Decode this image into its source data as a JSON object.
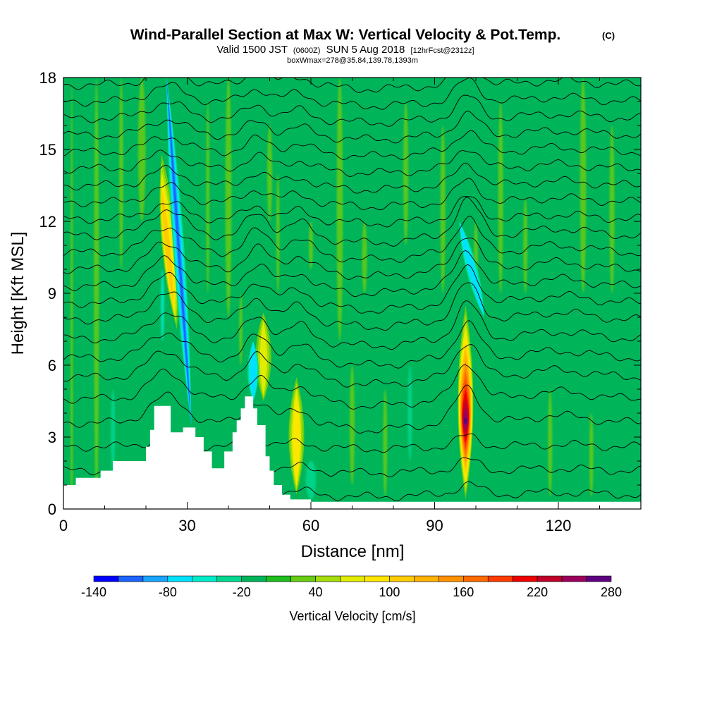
{
  "header": {
    "title_main": "Wind-Parallel Section at Max W: Vertical Velocity & Pot.Temp.",
    "title_mark": "(C)",
    "valid_prefix": "Valid 1500 JST",
    "valid_zulu": "(0600Z)",
    "valid_date": "SUN 5 Aug 2018",
    "valid_fcst": "[12hrFcst@2312z]",
    "box_info": "boxWmax=278@35.84,139.78,1393m"
  },
  "chart_data": {
    "type": "heatmap",
    "title": "Wind-Parallel Section at Max W: Vertical Velocity & Pot.Temp.",
    "xlabel": "Distance [nm]",
    "ylabel": "Height [Kft MSL]",
    "xlim": [
      0,
      140
    ],
    "ylim": [
      0,
      18
    ],
    "x_ticks": [
      0,
      30,
      60,
      90,
      120
    ],
    "y_ticks": [
      0,
      3,
      6,
      9,
      12,
      15,
      18
    ],
    "grid": false,
    "max_w_cm_s": 278,
    "max_w_location": "35.84,139.78",
    "max_w_height_m": 1393,
    "colorbar": {
      "label": "Vertical Velocity [cm/s]",
      "tick_labels": [
        "-140",
        "-80",
        "-20",
        "40",
        "100",
        "160",
        "220",
        "280"
      ],
      "tick_values": [
        -140,
        -80,
        -20,
        40,
        100,
        160,
        220,
        280
      ],
      "levels": [
        -140,
        -120,
        -100,
        -80,
        -60,
        -40,
        -20,
        0,
        20,
        40,
        60,
        80,
        100,
        120,
        140,
        160,
        180,
        200,
        220,
        240,
        260,
        280
      ],
      "colors": [
        "#0000ff",
        "#1e63ff",
        "#18a4ff",
        "#00e1ff",
        "#00ecc8",
        "#00d890",
        "#00b45a",
        "#1ebe1e",
        "#68cc12",
        "#a5dc0a",
        "#e2ec00",
        "#ffe600",
        "#ffcc00",
        "#ffb300",
        "#ff9100",
        "#ff6a00",
        "#ff3c00",
        "#ee0000",
        "#c00028",
        "#9b005c",
        "#5e0082"
      ]
    },
    "terrain_nm_kft": [
      [
        0,
        1.0
      ],
      [
        3,
        1.0
      ],
      [
        3,
        1.3
      ],
      [
        9,
        1.3
      ],
      [
        9,
        1.6
      ],
      [
        12,
        1.6
      ],
      [
        12,
        2.0
      ],
      [
        20,
        2.0
      ],
      [
        20,
        2.6
      ],
      [
        21,
        2.6
      ],
      [
        21,
        3.3
      ],
      [
        22,
        3.3
      ],
      [
        22,
        4.3
      ],
      [
        26,
        4.3
      ],
      [
        26,
        3.2
      ],
      [
        29,
        3.2
      ],
      [
        29,
        3.4
      ],
      [
        32,
        3.4
      ],
      [
        32,
        3.0
      ],
      [
        34,
        3.0
      ],
      [
        34,
        2.4
      ],
      [
        36,
        2.4
      ],
      [
        36,
        1.7
      ],
      [
        39,
        1.7
      ],
      [
        39,
        2.4
      ],
      [
        41,
        2.4
      ],
      [
        41,
        3.2
      ],
      [
        42,
        3.2
      ],
      [
        42,
        3.7
      ],
      [
        43,
        3.7
      ],
      [
        43,
        4.2
      ],
      [
        44,
        4.2
      ],
      [
        44,
        4.7
      ],
      [
        46,
        4.7
      ],
      [
        46,
        4.2
      ],
      [
        47,
        4.2
      ],
      [
        47,
        3.5
      ],
      [
        49,
        3.5
      ],
      [
        49,
        2.2
      ],
      [
        50,
        2.2
      ],
      [
        50,
        1.6
      ],
      [
        51,
        1.6
      ],
      [
        51,
        1.0
      ],
      [
        53,
        1.0
      ],
      [
        53,
        0.6
      ],
      [
        55,
        0.6
      ],
      [
        55,
        0.4
      ],
      [
        60,
        0.4
      ],
      [
        60,
        0.3
      ],
      [
        140,
        0.3
      ]
    ],
    "updraft_cores": [
      {
        "x_nm": 97.5,
        "z_bottom_kft": 0.4,
        "z_top_kft": 8.5,
        "w_max_cm_s": 278
      },
      {
        "x_nm": 26,
        "z_bottom_kft": 7.5,
        "z_top_kft": 14.8,
        "w_max_cm_s": 100
      },
      {
        "x_nm": 56.5,
        "z_bottom_kft": 0.6,
        "z_top_kft": 5.5,
        "w_max_cm_s": 80
      },
      {
        "x_nm": 48.5,
        "z_bottom_kft": 4.5,
        "z_top_kft": 8.2,
        "w_max_cm_s": 70
      }
    ],
    "downdraft_cores": [
      {
        "x_top_nm": 25,
        "z_top_kft": 18,
        "x_bottom_nm": 31,
        "z_bottom_kft": 3.5,
        "w_min_cm_s": -100
      },
      {
        "x_nm": 46,
        "z_bottom_kft": 4.5,
        "z_top_kft": 7.0,
        "w_min_cm_s": -60
      },
      {
        "x_top_nm": 96,
        "z_top_kft": 12,
        "x_bottom_nm": 102,
        "z_bottom_kft": 8,
        "w_min_cm_s": -60
      }
    ],
    "theta_contour_base_heights_kft": [
      0.6,
      1.6,
      2.6,
      3.6,
      4.6,
      5.5,
      6.3,
      7.1,
      7.9,
      8.6,
      9.3,
      10.0,
      10.7,
      11.4,
      12.1,
      12.8,
      13.5,
      14.2,
      14.9,
      15.6,
      16.3,
      17.0,
      17.7
    ]
  }
}
